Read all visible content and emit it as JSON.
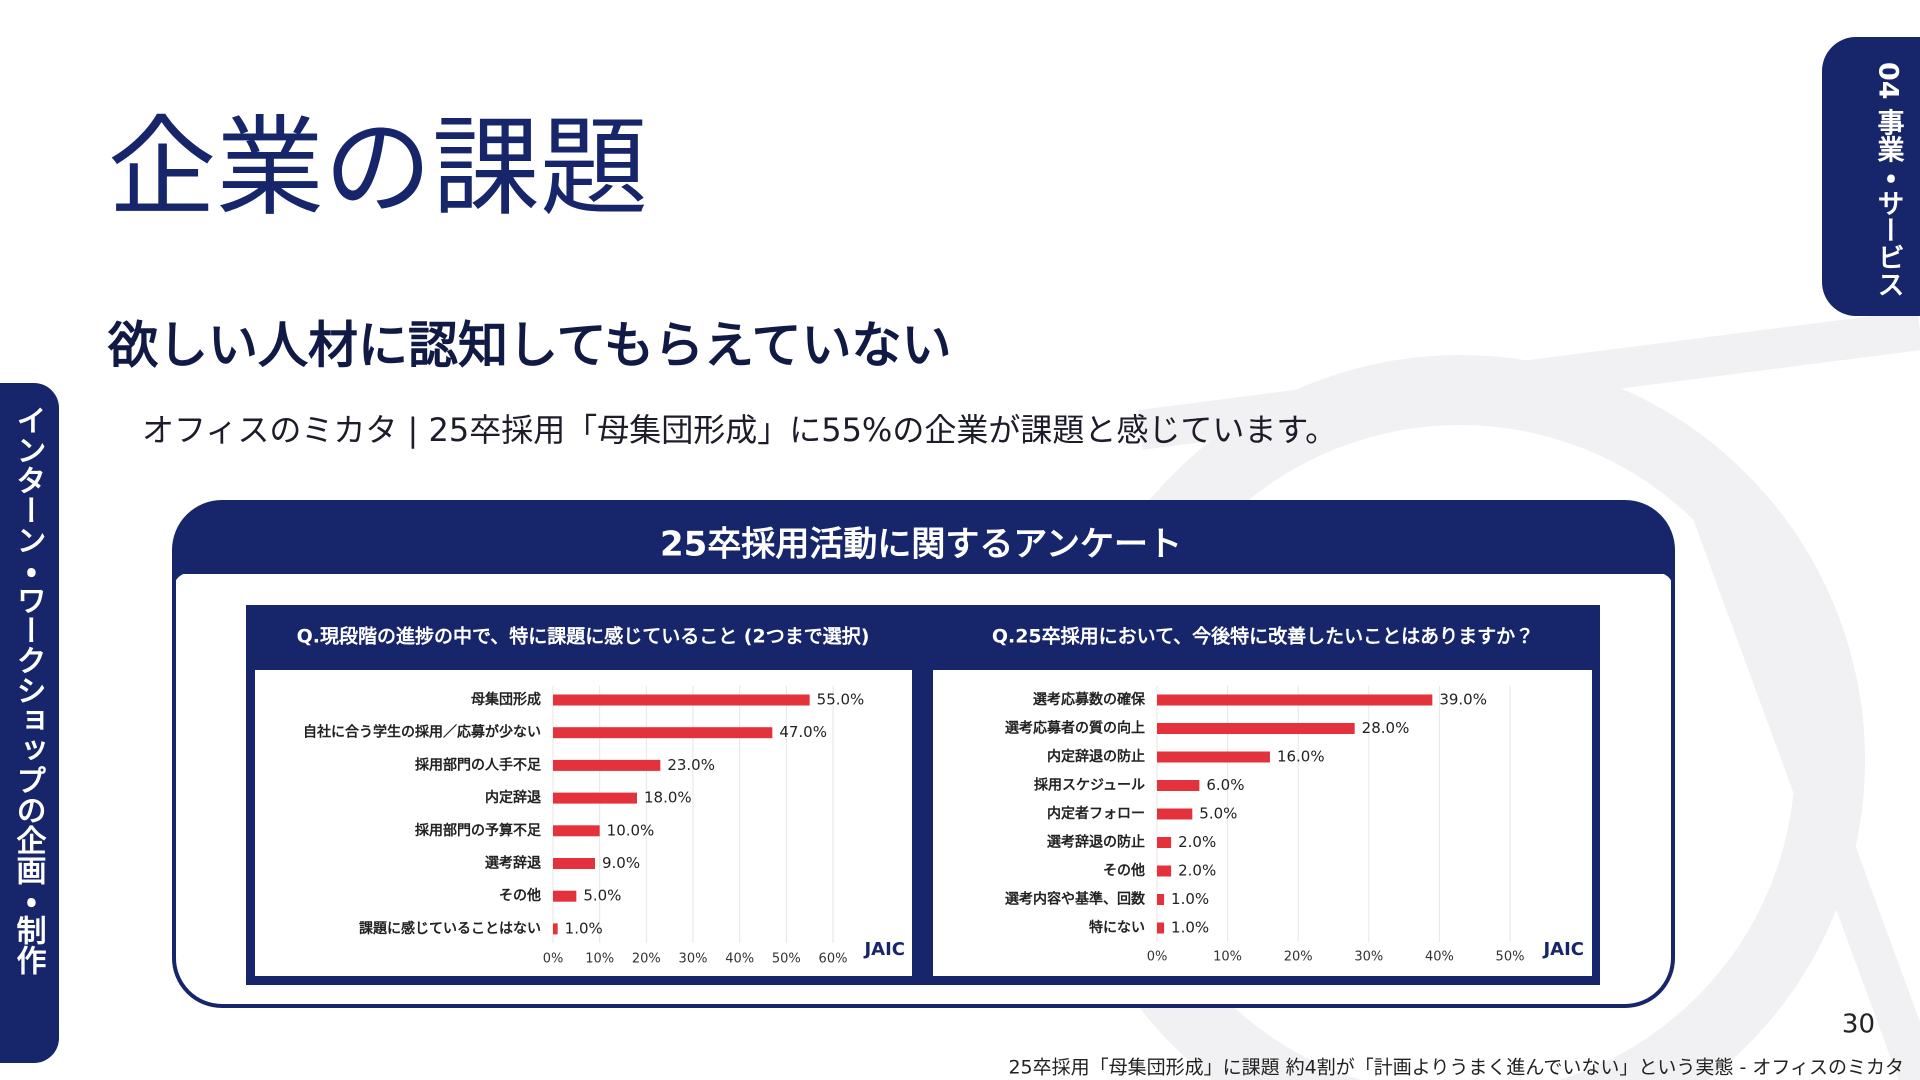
{
  "slide": {
    "title": "企業の課題",
    "section_tab": "04 事業・サービス",
    "side_tab": "インターン・ワークショップの企画・制作",
    "heading": "欲しい人材に認知してもらえていない",
    "lead": "オフィスのミカタ | 25卒採用「母集団形成」に55%の企業が課題と感じています。",
    "survey_title": "25卒採用活動に関するアンケート",
    "logo": "JAIC",
    "page_number": "30",
    "source": "25卒採用「母集団形成」に課題 約4割が「計画よりうまく進んでいない」という実態 - オフィスのミカタ"
  },
  "chart_data": [
    {
      "type": "bar",
      "orientation": "horizontal",
      "title": "Q.現段階の進捗の中で、特に課題に感じていること (2つまで選択)",
      "categories": [
        "母集団形成",
        "自社に合う学生の採用／応募が少ない",
        "採用部門の人手不足",
        "内定辞退",
        "採用部門の予算不足",
        "選考辞退",
        "その他",
        "課題に感じていることはない"
      ],
      "values": [
        55,
        47,
        23,
        18,
        10,
        9,
        5,
        1
      ],
      "value_labels": [
        "55.0%",
        "47.0%",
        "23.0%",
        "18.0%",
        "10.0%",
        "9.0%",
        "5.0%",
        "1.0%"
      ],
      "color": "#e3323b",
      "xlim": [
        0,
        60
      ],
      "xticks": [
        {
          "value": 0,
          "label": "0%"
        },
        {
          "value": 10,
          "label": "10%"
        },
        {
          "value": 20,
          "label": "20%"
        },
        {
          "value": 30,
          "label": "30%"
        },
        {
          "value": 40,
          "label": "40%"
        },
        {
          "value": 50,
          "label": "50%"
        },
        {
          "value": 60,
          "label": "60%"
        }
      ],
      "grid": true
    },
    {
      "type": "bar",
      "orientation": "horizontal",
      "title": "Q.25卒採用において、今後特に改善したいことはありますか？",
      "categories": [
        "選考応募数の確保",
        "選考応募者の質の向上",
        "内定辞退の防止",
        "採用スケジュール",
        "内定者フォロー",
        "選考辞退の防止",
        "その他",
        "選考内容や基準、回数",
        "特にない"
      ],
      "values": [
        39,
        28,
        16,
        6,
        5,
        2,
        2,
        1,
        1
      ],
      "value_labels": [
        "39.0%",
        "28.0%",
        "16.0%",
        "6.0%",
        "5.0%",
        "2.0%",
        "2.0%",
        "1.0%",
        "1.0%"
      ],
      "color": "#e3323b",
      "xlim": [
        0,
        50
      ],
      "xticks": [
        {
          "value": 0,
          "label": "0%"
        },
        {
          "value": 10,
          "label": "10%"
        },
        {
          "value": 20,
          "label": "20%"
        },
        {
          "value": 30,
          "label": "30%"
        },
        {
          "value": 40,
          "label": "40%"
        },
        {
          "value": 50,
          "label": "50%"
        }
      ],
      "grid": true
    }
  ]
}
